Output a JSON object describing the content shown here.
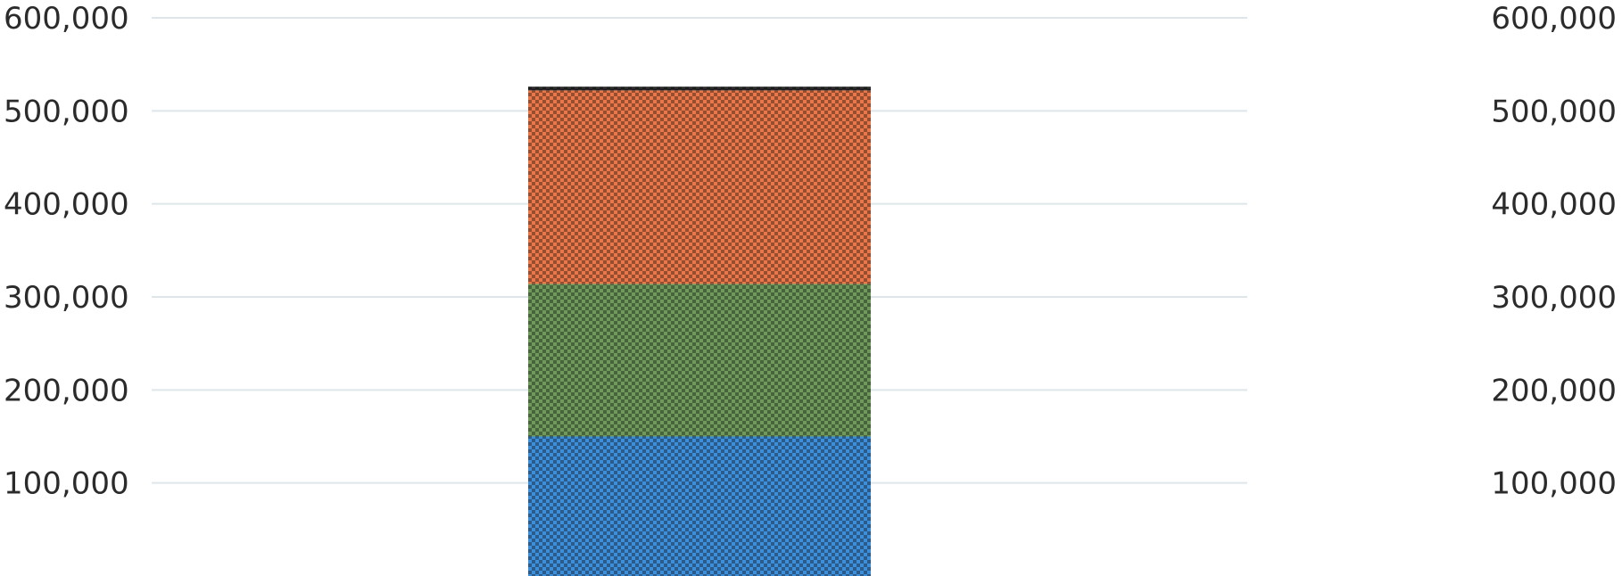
{
  "chart_data": {
    "type": "bar",
    "stacked": true,
    "categories": [
      ""
    ],
    "series": [
      {
        "values": [
          150000
        ],
        "color": "#3f8ed8"
      },
      {
        "values": [
          164000
        ],
        "color": "#6f9a5c"
      },
      {
        "values": [
          208000
        ],
        "color": "#e8784a"
      },
      {
        "values": [
          4000
        ],
        "color": "#2a2a2a"
      }
    ],
    "ylim": [
      0,
      600000
    ],
    "yticks": [
      100000,
      200000,
      300000,
      400000,
      500000,
      600000
    ],
    "ytick_labels": [
      "100,000",
      "200,000",
      "300,000",
      "400,000",
      "500,000",
      "600,000"
    ],
    "left_axis": true,
    "right_axis": true,
    "grid": true,
    "grid_color": "#dfe6ea",
    "bar_fill_pattern": "checkered",
    "title": "",
    "xlabel": "",
    "ylabel": ""
  }
}
